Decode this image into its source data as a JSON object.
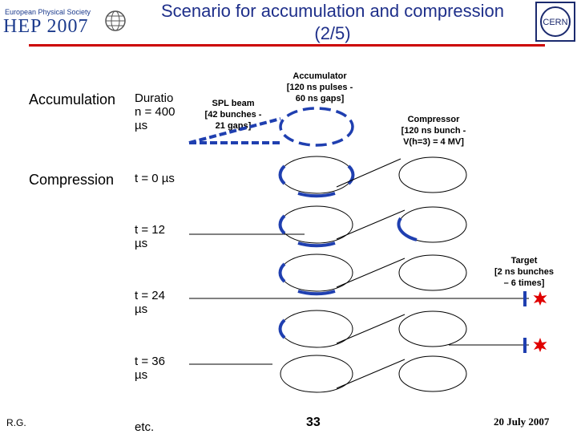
{
  "header": {
    "logo_society": "European Physical Society",
    "logo_conference": "HEP 2007",
    "title_line1": "Scenario for accumulation and compression",
    "title_line2": "(2/5)",
    "cern_logo": "CERN"
  },
  "left": {
    "accumulation": "Accumulation",
    "accumulation_time": [
      "Duratio",
      "n = 400",
      "µs"
    ],
    "compression": "Compression",
    "t0": "t = 0 µs",
    "t12": [
      "t = 12",
      "µs"
    ],
    "t24": [
      "t = 24",
      "µs"
    ],
    "t36": [
      "t = 36",
      "µs"
    ],
    "etc": "etc."
  },
  "labels": {
    "spl_beam": [
      "SPL beam",
      "[42 bunches -",
      "21 gaps]"
    ],
    "accumulator": [
      "Accumulator",
      "[120 ns pulses -",
      "60 ns gaps]"
    ],
    "compressor": [
      "Compressor",
      "[120 ns bunch -",
      "V(h=3) = 4 MV]"
    ],
    "target": [
      "Target",
      "[2 ns bunches",
      "– 6 times]"
    ]
  },
  "footer": {
    "author": "R.G.",
    "page": "33",
    "date": "20 July 2007"
  },
  "colors": {
    "title": "#1e2f8a",
    "rule": "#cc0000",
    "beam": "#1f3fb0",
    "target_star": "#e00000"
  }
}
